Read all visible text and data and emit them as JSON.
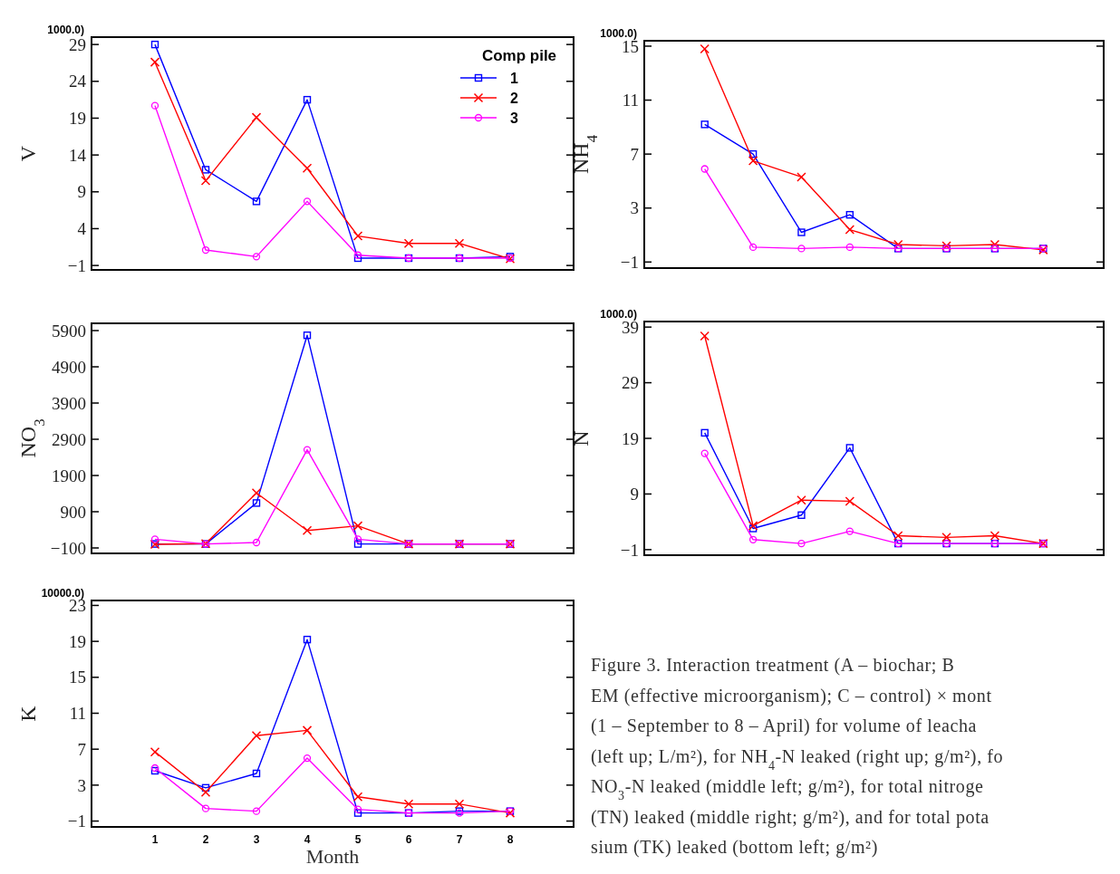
{
  "chart_data": [
    {
      "type": "line",
      "ylabel": "V",
      "annotations": [
        "1000.0)"
      ],
      "categories": [
        null,
        null,
        null,
        null,
        null,
        null,
        null,
        null
      ],
      "ylim": [
        -1.6,
        30
      ],
      "yticks": [
        -1,
        4,
        9,
        14,
        19,
        24,
        29
      ],
      "tick_labels": "y",
      "grid": false,
      "legend": "top right",
      "legend_title": "Comp pile",
      "line_style": "solid",
      "series": [
        {
          "name": "1",
          "color": "#0000ff",
          "marker": "square",
          "values": [
            29,
            12,
            7.7,
            21.5,
            0,
            0,
            0,
            0.2
          ]
        },
        {
          "name": "2",
          "color": "#ff0000",
          "marker": "cross",
          "values": [
            26.6,
            10.5,
            19.1,
            12.2,
            3,
            2,
            2,
            -0.1
          ]
        },
        {
          "name": "3",
          "color": "#ff00ff",
          "marker": "circle",
          "values": [
            20.7,
            1.1,
            0.2,
            7.7,
            0.4,
            0,
            0,
            0
          ]
        }
      ]
    },
    {
      "type": "line",
      "ylabel": "NH$_{4}$",
      "annotations": [
        "1000.0)"
      ],
      "categories": [
        null,
        null,
        null,
        null,
        null,
        null,
        null,
        null
      ],
      "ylim": [
        -1.45,
        15.4
      ],
      "yticks": [
        -1,
        3,
        7,
        11,
        15
      ],
      "tick_labels": "y",
      "grid": false,
      "legend": false,
      "line_style": "solid",
      "series": [
        {
          "color": "#0000ff",
          "marker": "square",
          "values": [
            9.2,
            7,
            1.2,
            2.5,
            0,
            0,
            0,
            0
          ]
        },
        {
          "color": "#ff0000",
          "marker": "cross",
          "values": [
            14.8,
            6.5,
            5.3,
            1.4,
            0.3,
            0.2,
            0.3,
            -0.1
          ]
        },
        {
          "color": "#ff00ff",
          "marker": "circle",
          "values": [
            5.9,
            0.1,
            0,
            0.1,
            0,
            0,
            0,
            0
          ]
        }
      ]
    },
    {
      "type": "line",
      "ylabel": "NO$_{3}$",
      "categories": [
        null,
        null,
        null,
        null,
        null,
        null,
        null,
        null
      ],
      "ylim": [
        -250,
        6100
      ],
      "yticks": [
        -100,
        900,
        1900,
        2900,
        3900,
        4900,
        5900
      ],
      "tick_labels": "y",
      "grid": false,
      "legend": false,
      "line_style": "solid",
      "series": [
        {
          "color": "#0000ff",
          "marker": "square",
          "values": [
            10,
            10,
            1140,
            5770,
            10,
            10,
            10,
            10
          ]
        },
        {
          "color": "#ff0000",
          "marker": "cross",
          "values": [
            0,
            20,
            1420,
            380,
            510,
            10,
            10,
            10
          ]
        },
        {
          "color": "#ff00ff",
          "marker": "circle",
          "values": [
            140,
            10,
            50,
            2610,
            140,
            10,
            10,
            10
          ]
        }
      ]
    },
    {
      "type": "line",
      "ylabel": "N",
      "annotations": [
        "1000.0)"
      ],
      "categories": [
        null,
        null,
        null,
        null,
        null,
        null,
        null,
        null
      ],
      "ylim": [
        -2,
        40
      ],
      "yticks": [
        -1,
        9,
        19,
        29,
        39
      ],
      "tick_labels": "y",
      "grid": false,
      "legend": false,
      "line_style": "solid",
      "series": [
        {
          "color": "#0000ff",
          "marker": "square",
          "values": [
            20,
            2.8,
            5.2,
            17.3,
            0.1,
            0.1,
            0.1,
            0.1
          ]
        },
        {
          "color": "#ff0000",
          "marker": "cross",
          "values": [
            37.4,
            3.3,
            7.9,
            7.7,
            1.5,
            1.2,
            1.5,
            0.1
          ]
        },
        {
          "color": "#ff00ff",
          "marker": "circle",
          "values": [
            16.3,
            0.8,
            0.1,
            2.3,
            0.1,
            0.1,
            0.1,
            0.1
          ]
        }
      ]
    },
    {
      "type": "line",
      "ylabel": "K",
      "xlabel": "Month",
      "annotations": [
        "10000.0)"
      ],
      "categories": [
        "1",
        "2",
        "3",
        "4",
        "5",
        "6",
        "7",
        "8"
      ],
      "ylim": [
        -1.65,
        23.55
      ],
      "yticks": [
        -1,
        3,
        7,
        11,
        15,
        19,
        23
      ],
      "grid": false,
      "legend": false,
      "line_style": "solid",
      "series": [
        {
          "color": "#0000ff",
          "marker": "square",
          "values": [
            4.6,
            2.7,
            4.3,
            19.2,
            -0.1,
            -0.1,
            0.1,
            0.1
          ]
        },
        {
          "color": "#ff0000",
          "marker": "cross",
          "values": [
            6.7,
            2.2,
            8.5,
            9.1,
            1.7,
            0.9,
            0.9,
            -0.1
          ]
        },
        {
          "color": "#ff00ff",
          "marker": "circle",
          "values": [
            4.9,
            0.4,
            0.1,
            6,
            0.3,
            -0.1,
            -0.1,
            0.1
          ]
        }
      ]
    },
    {
      "type": "other",
      "annotations": [
        "Figure 3. Interaction treatment (A – biochar; B",
        "EM (effective microorganism); C – control) × mont",
        "(1 – September to 8 – April) for volume of leacha",
        "(left up; L/m²), for NH$_{4}$-N leaked (right up; g/m²), fo",
        "NO$_{3}$-N leaked (middle left; g/m²), for total nitroge",
        "(TN) leaked (middle right; g/m²), and for total pota",
        "sium (TK) leaked (bottom left; g/m²)"
      ]
    }
  ]
}
